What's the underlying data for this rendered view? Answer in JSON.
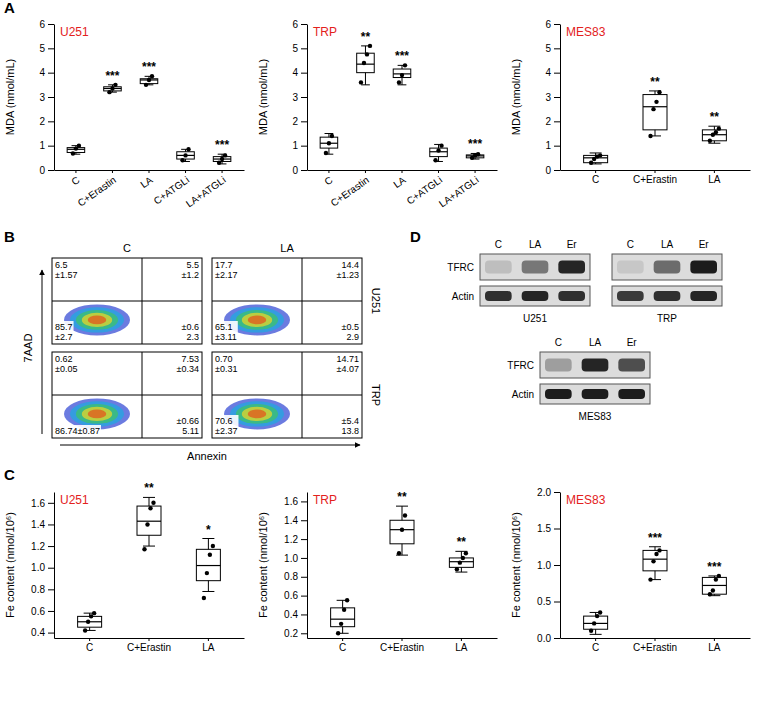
{
  "panel_letters": [
    "A",
    "B",
    "C",
    "D"
  ],
  "chart_data": [
    {
      "type": "box",
      "title": "U251",
      "y_label": "MDA (nmol/mL)",
      "categories": [
        "C",
        "C+Erastin",
        "LA",
        "C+ATGLi",
        "LA+ATGLi"
      ],
      "ylim": [
        0,
        6
      ],
      "yticks": [
        0,
        1,
        2,
        3,
        4,
        5,
        6
      ],
      "boxes": [
        {
          "min": 0.65,
          "q1": 0.72,
          "median": 0.85,
          "q3": 0.92,
          "max": 1.0
        },
        {
          "min": 3.2,
          "q1": 3.25,
          "median": 3.35,
          "q3": 3.42,
          "max": 3.5
        },
        {
          "min": 3.5,
          "q1": 3.55,
          "median": 3.7,
          "q3": 3.75,
          "max": 3.85
        },
        {
          "min": 0.35,
          "q1": 0.45,
          "median": 0.6,
          "q3": 0.75,
          "max": 0.85
        },
        {
          "min": 0.25,
          "q1": 0.35,
          "median": 0.45,
          "q3": 0.55,
          "max": 0.65
        }
      ],
      "points": [
        [
          0.68,
          0.88,
          1.0
        ],
        [
          3.2,
          3.35,
          3.5
        ],
        [
          3.5,
          3.7,
          3.85
        ],
        [
          0.4,
          0.6,
          0.85
        ],
        [
          0.3,
          0.45,
          0.6
        ]
      ],
      "annotations": [
        null,
        "***",
        "***",
        null,
        "***"
      ]
    },
    {
      "type": "box",
      "title": "TRP",
      "y_label": "MDA (nmol/mL)",
      "categories": [
        "C",
        "C+Erastin",
        "LA",
        "C+ATGLi",
        "LA+ATGLi"
      ],
      "ylim": [
        0,
        6
      ],
      "yticks": [
        0,
        1,
        2,
        3,
        4,
        5,
        6
      ],
      "boxes": [
        {
          "min": 0.65,
          "q1": 0.9,
          "median": 1.1,
          "q3": 1.35,
          "max": 1.5
        },
        {
          "min": 3.5,
          "q1": 4.0,
          "median": 4.35,
          "q3": 4.8,
          "max": 5.1
        },
        {
          "min": 3.5,
          "q1": 3.8,
          "median": 3.95,
          "q3": 4.15,
          "max": 4.3
        },
        {
          "min": 0.35,
          "q1": 0.55,
          "median": 0.75,
          "q3": 0.9,
          "max": 1.05
        },
        {
          "min": 0.45,
          "q1": 0.5,
          "median": 0.58,
          "q3": 0.62,
          "max": 0.68
        }
      ],
      "points": [
        [
          0.7,
          1.1,
          1.4
        ],
        [
          3.6,
          4.4,
          4.75,
          5.1
        ],
        [
          3.6,
          3.9,
          4.3
        ],
        [
          0.4,
          0.8,
          1.0
        ],
        [
          0.5,
          0.6,
          0.65
        ]
      ],
      "annotations": [
        null,
        "**",
        "***",
        null,
        "***"
      ]
    },
    {
      "type": "box",
      "title": "MES83",
      "y_label": "MDA (nmol/mL)",
      "categories": [
        "C",
        "C+Erastin",
        "LA"
      ],
      "ylim": [
        0,
        6
      ],
      "yticks": [
        0,
        1,
        2,
        3,
        4,
        5,
        6
      ],
      "boxes": [
        {
          "min": 0.25,
          "q1": 0.3,
          "median": 0.5,
          "q3": 0.6,
          "max": 0.7
        },
        {
          "min": 1.4,
          "q1": 1.65,
          "median": 2.6,
          "q3": 3.1,
          "max": 3.25
        },
        {
          "min": 1.1,
          "q1": 1.2,
          "median": 1.45,
          "q3": 1.65,
          "max": 1.8
        }
      ],
      "points": [
        [
          0.3,
          0.45,
          0.55,
          0.6
        ],
        [
          1.4,
          2.5,
          2.8,
          3.2
        ],
        [
          1.2,
          1.45,
          1.55,
          1.7
        ]
      ],
      "annotations": [
        null,
        "**",
        "**"
      ]
    },
    {
      "type": "box",
      "title": "U251",
      "y_label": "Fe content (nmol/10⁶)",
      "categories": [
        "C",
        "C+Erastin",
        "LA"
      ],
      "ylim": [
        0.35,
        1.7
      ],
      "yticks": [
        0.4,
        0.6,
        0.8,
        {
          "value": 1,
          "label": "1.0"
        },
        1.2,
        1.4,
        1.6
      ],
      "boxes": [
        {
          "min": 0.42,
          "q1": 0.45,
          "median": 0.5,
          "q3": 0.55,
          "max": 0.58
        },
        {
          "min": 1.2,
          "q1": 1.3,
          "median": 1.43,
          "q3": 1.57,
          "max": 1.65
        },
        {
          "min": 0.78,
          "q1": 0.88,
          "median": 1.02,
          "q3": 1.17,
          "max": 1.27
        }
      ],
      "points": [
        [
          0.42,
          0.5,
          0.55,
          0.58
        ],
        [
          1.17,
          1.4,
          1.55,
          1.6
        ],
        [
          0.72,
          0.95,
          1.12,
          1.2
        ]
      ],
      "annotations": [
        null,
        "**",
        "*"
      ]
    },
    {
      "type": "box",
      "title": "TRP",
      "y_label": "Fe content (nmol/10⁶)",
      "categories": [
        "C",
        "C+Erastin",
        "LA"
      ],
      "ylim": [
        0.15,
        1.7
      ],
      "yticks": [
        0.2,
        0.4,
        0.6,
        0.8,
        {
          "value": 1,
          "label": "1.0"
        },
        1.2,
        1.4,
        1.6
      ],
      "boxes": [
        {
          "min": 0.2,
          "q1": 0.27,
          "median": 0.35,
          "q3": 0.47,
          "max": 0.55
        },
        {
          "min": 1.03,
          "q1": 1.15,
          "median": 1.3,
          "q3": 1.4,
          "max": 1.55
        },
        {
          "min": 0.85,
          "q1": 0.9,
          "median": 0.96,
          "q3": 1.0,
          "max": 1.07
        }
      ],
      "points": [
        [
          0.2,
          0.3,
          0.45,
          0.55
        ],
        [
          1.05,
          1.3,
          1.45
        ],
        [
          0.88,
          0.95,
          1.0,
          1.05
        ]
      ],
      "annotations": [
        null,
        "**",
        "**"
      ]
    },
    {
      "type": "box",
      "title": "MES83",
      "y_label": "Fe content (nmol/10⁶)",
      "categories": [
        "C",
        "C+Erastin",
        "LA"
      ],
      "ylim": [
        0,
        2
      ],
      "yticks": [
        {
          "value": 0,
          "label": "0.0"
        },
        0.5,
        {
          "value": 1,
          "label": "1.0"
        },
        1.5,
        {
          "value": 2,
          "label": "2.0"
        }
      ],
      "boxes": [
        {
          "min": 0.05,
          "q1": 0.12,
          "median": 0.2,
          "q3": 0.3,
          "max": 0.35
        },
        {
          "min": 0.8,
          "q1": 0.92,
          "median": 1.08,
          "q3": 1.2,
          "max": 1.25
        },
        {
          "min": 0.58,
          "q1": 0.6,
          "median": 0.72,
          "q3": 0.83,
          "max": 0.85
        }
      ],
      "points": [
        [
          0.1,
          0.2,
          0.3,
          0.35
        ],
        [
          0.8,
          1.05,
          1.15,
          1.2
        ],
        [
          0.6,
          0.65,
          0.8,
          0.85
        ]
      ],
      "annotations": [
        null,
        "***",
        "***"
      ]
    }
  ],
  "flow": {
    "y_label": "7AAD",
    "x_label": "Annexin",
    "columns": [
      "C",
      "LA"
    ],
    "rows": [
      "U251",
      "TRP"
    ],
    "plots": [
      [
        {
          "UL": [
            "6.5",
            "±1.57"
          ],
          "UR": [
            "5.5",
            "±1.2"
          ],
          "LL": [
            "85.7",
            "±2.7"
          ],
          "LR": [
            "±0.6",
            "2.3"
          ]
        },
        {
          "UL": [
            "17.7",
            "±2.17"
          ],
          "UR": [
            "14.4",
            "±1.23"
          ],
          "LL": [
            "65.1",
            "±3.11"
          ],
          "LR": [
            "±0.5",
            "2.9"
          ]
        }
      ],
      [
        {
          "UL": [
            "0.62",
            "±0.05"
          ],
          "UR": [
            "7.53",
            "±0.34"
          ],
          "LL": [
            "86.74±0.87"
          ],
          "LR": [
            "±0.66",
            "5.11"
          ]
        },
        {
          "UL": [
            "0.70",
            "±0.31"
          ],
          "UR": [
            "14.71",
            "±4.07"
          ],
          "LL": [
            "70.6",
            "±2.37"
          ],
          "LR": [
            "±5.4",
            "13.8"
          ]
        }
      ]
    ]
  },
  "blot": {
    "lanes": [
      "C",
      "LA",
      "Er"
    ],
    "rows": [
      "TFRC",
      "Actin"
    ],
    "blots": [
      {
        "label": "U251",
        "bands": [
          [
            0.15,
            0.5,
            0.9
          ],
          [
            0.85,
            0.9,
            0.85
          ]
        ]
      },
      {
        "label": "TRP",
        "bands": [
          [
            0.1,
            0.55,
            0.95
          ],
          [
            0.8,
            0.85,
            0.9
          ]
        ]
      },
      {
        "label": "MES83",
        "bands": [
          [
            0.3,
            0.9,
            0.7
          ],
          [
            0.95,
            0.95,
            0.95
          ]
        ]
      }
    ]
  }
}
